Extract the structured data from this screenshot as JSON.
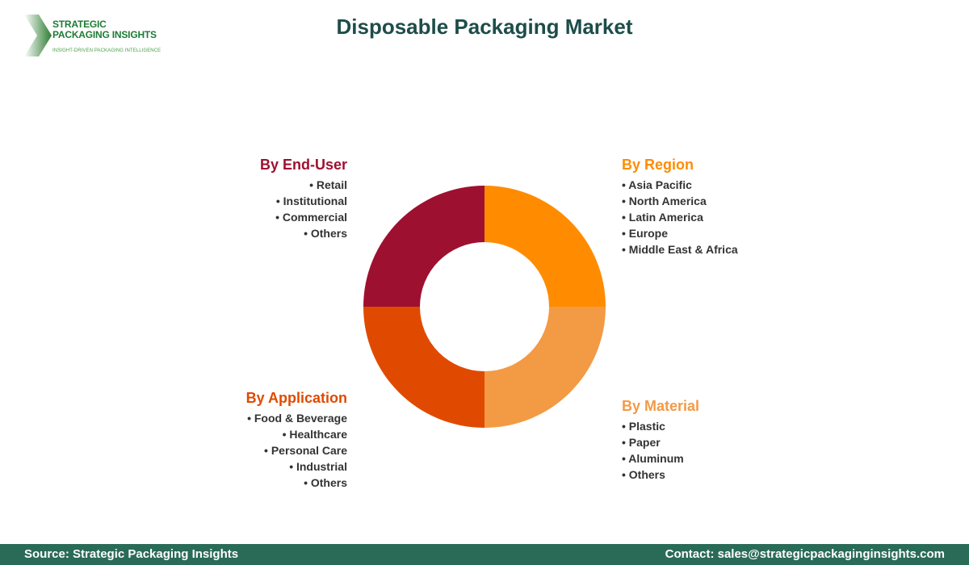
{
  "logo": {
    "line1": "STRATEGIC",
    "line2": "PACKAGING INSIGHTS",
    "tagline": "INSIGHT-DRIVEN PACKAGING INTELLIGENCE"
  },
  "title": "Disposable Packaging Market",
  "segments": [
    {
      "title": "By Region",
      "color": "#ff8c00",
      "items": [
        "Asia Pacific",
        "North America",
        "Latin America",
        "Europe",
        "Middle East & Africa"
      ]
    },
    {
      "title": "By Material",
      "color": "#f39a45",
      "items": [
        "Plastic",
        "Paper",
        "Aluminum",
        "Others"
      ]
    },
    {
      "title": "By Application",
      "color": "#e04a00",
      "items": [
        "Food & Beverage",
        "Healthcare",
        "Personal Care",
        "Industrial",
        "Others"
      ]
    },
    {
      "title": "By End-User",
      "color": "#9e1030",
      "items": [
        "Retail",
        "Institutional",
        "Commercial",
        "Others"
      ]
    }
  ],
  "footer": {
    "source": "Source: Strategic Packaging Insights",
    "contact": "Contact: sales@strategicpackaginginsights.com"
  }
}
